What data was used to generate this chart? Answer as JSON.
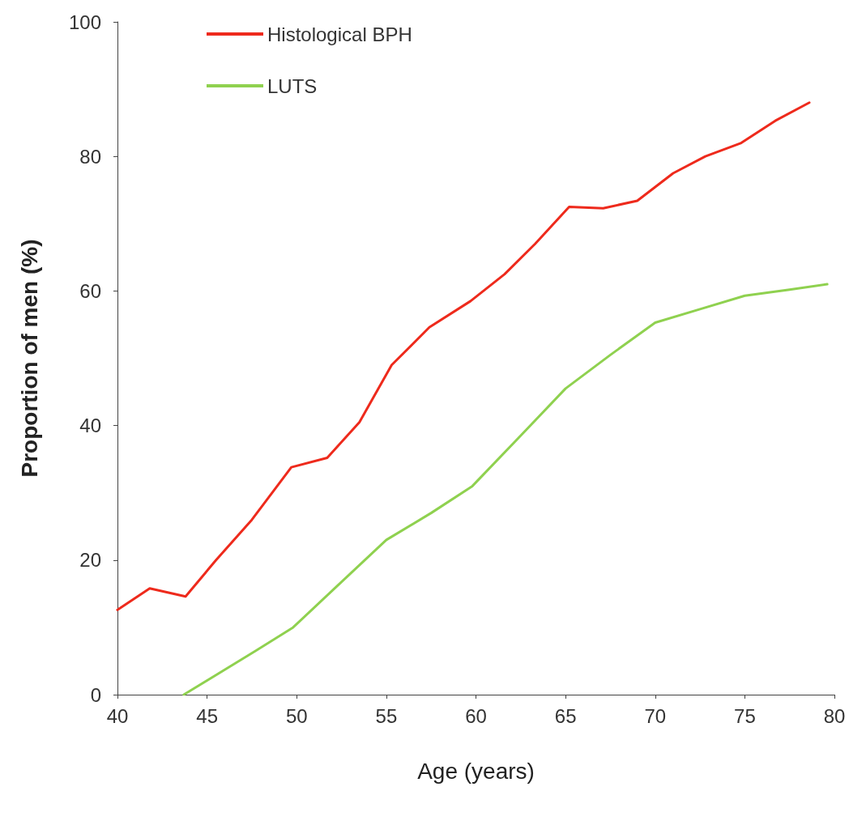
{
  "chart_data": {
    "type": "line",
    "xlabel": "Age (years)",
    "ylabel": "Proportion of men (%)",
    "xlim": [
      40,
      80
    ],
    "xticks": [
      40,
      45,
      50,
      55,
      60,
      65,
      70,
      75,
      80
    ],
    "ylim": [
      0,
      100
    ],
    "yticks": [
      0,
      20,
      40,
      60,
      80,
      100
    ],
    "grid": false,
    "legend": "top left",
    "marker": "none",
    "line_style": "solid",
    "series": [
      {
        "name": "Histological BPH",
        "color": "#ee2a1c",
        "x": [
          40,
          41.8,
          43.8,
          45.5,
          47.5,
          49.7,
          51.7,
          53.5,
          55.3,
          57.4,
          59.7,
          61.6,
          63.3,
          65.2,
          67.1,
          69,
          71,
          72.8,
          74.8,
          76.7,
          78.6
        ],
        "values": [
          12.6,
          15.8,
          14.6,
          20,
          26,
          33.8,
          35.2,
          40.5,
          49,
          54.6,
          58.5,
          62.5,
          67,
          72.5,
          72.3,
          73.4,
          77.5,
          80,
          82,
          85.3,
          88
        ]
      },
      {
        "name": "LUTS",
        "color": "#8fd14f",
        "x": [
          43.7,
          47.7,
          49.8,
          52,
          55,
          57.5,
          59.8,
          62.5,
          65,
          67.5,
          70,
          72.5,
          75,
          77.5,
          79.6
        ],
        "values": [
          0,
          6.5,
          10,
          15.5,
          23,
          27,
          31,
          38.5,
          45.5,
          50.5,
          55.3,
          57.3,
          59.3,
          60.2,
          61
        ]
      }
    ]
  }
}
